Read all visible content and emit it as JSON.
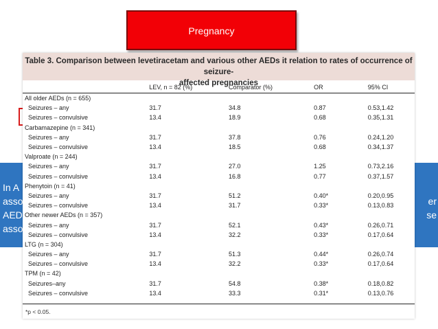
{
  "banner": {
    "title": "Pregnancy"
  },
  "background_text": {
    "left_lines": [
      "In A",
      "asso",
      "AED",
      "asso"
    ],
    "right_lines": [
      "er",
      "se"
    ]
  },
  "table": {
    "title_line1": "Table 3.  Comparison between levetiracetam and various other AEDs it relation to rates of occurrence of seizure-",
    "title_line2": "affected pregnancies",
    "headers": [
      "",
      "LEV, n = 82 (%)",
      "Comparator (%)",
      "OR",
      "95% CI"
    ],
    "rows": [
      {
        "type": "group",
        "cells": [
          "All older AEDs (n = 655)",
          "",
          "",
          "",
          ""
        ]
      },
      {
        "type": "sub",
        "cells": [
          "Seizures – any",
          "31.7",
          "34.8",
          "0.87",
          "0.53,1.42"
        ]
      },
      {
        "type": "sub",
        "cells": [
          "Seizures – convulsive",
          "13.4",
          "18.9",
          "0.68",
          "0.35,1.31"
        ]
      },
      {
        "type": "group",
        "cells": [
          "Carbamazepine (n = 341)",
          "",
          "",
          "",
          ""
        ]
      },
      {
        "type": "sub",
        "cells": [
          "Seizures – any",
          "31.7",
          "37.8",
          "0.76",
          "0.24,1.20"
        ]
      },
      {
        "type": "sub",
        "cells": [
          "Seizures – convulsive",
          "13.4",
          "18.5",
          "0.68",
          "0.34,1.37"
        ]
      },
      {
        "type": "group",
        "cells": [
          "Valproate (n = 244)",
          "",
          "",
          "",
          ""
        ]
      },
      {
        "type": "sub",
        "cells": [
          "Seizures – any",
          "31.7",
          "27.0",
          "1.25",
          "0.73,2.16"
        ]
      },
      {
        "type": "sub",
        "cells": [
          "Seizures – convulsive",
          "13.4",
          "16.8",
          "0.77",
          "0.37,1.57"
        ]
      },
      {
        "type": "group",
        "cells": [
          "Phenytoin (n = 41)",
          "",
          "",
          "",
          ""
        ]
      },
      {
        "type": "sub",
        "cells": [
          "Seizures – any",
          "31.7",
          "51.2",
          "0.40*",
          "0.20,0.95"
        ]
      },
      {
        "type": "sub",
        "cells": [
          "Seizures – convulsive",
          "13.4",
          "31.7",
          "0.33*",
          "0.13,0.83"
        ]
      },
      {
        "type": "group",
        "cells": [
          "Other newer AEDs (n = 357)",
          "",
          "",
          "",
          ""
        ]
      },
      {
        "type": "sub",
        "cells": [
          "Seizures – any",
          "31.7",
          "52.1",
          "0.43*",
          "0.26,0.71"
        ]
      },
      {
        "type": "sub",
        "cells": [
          "Seizures – convulsive",
          "13.4",
          "32.2",
          "0.33*",
          "0.17,0.64"
        ]
      },
      {
        "type": "group",
        "cells": [
          "LTG (n = 304)",
          "",
          "",
          "",
          ""
        ]
      },
      {
        "type": "sub",
        "cells": [
          "Seizures – any",
          "31.7",
          "51.3",
          "0.44*",
          "0.26,0.74"
        ]
      },
      {
        "type": "sub",
        "cells": [
          "Seizures – convulsive",
          "13.4",
          "32.2",
          "0.33*",
          "0.17,0.64"
        ]
      },
      {
        "type": "group",
        "cells": [
          "TPM (n = 42)",
          "",
          "",
          "",
          ""
        ]
      },
      {
        "type": "sub",
        "cells": [
          "Seizures–any",
          "31.7",
          "54.8",
          "0.38*",
          "0.18,0.82"
        ]
      },
      {
        "type": "sub",
        "cells": [
          "Seizures – convulsive",
          "13.4",
          "33.3",
          "0.31*",
          "0.13,0.76"
        ]
      }
    ],
    "footnote": "*p < 0.05."
  },
  "colors": {
    "banner_red": "#f20006",
    "panel_blue": "#2f75c0",
    "title_bg": "#eddcd7",
    "bracket_red": "#d81a1a"
  }
}
